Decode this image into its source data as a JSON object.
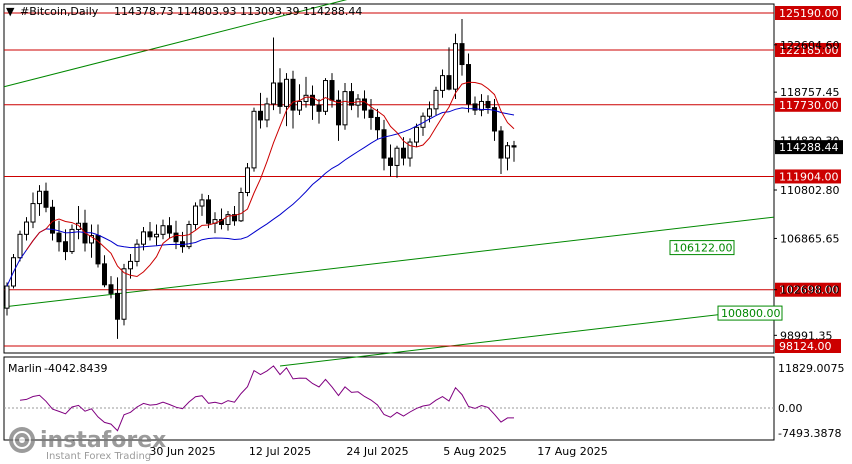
{
  "header": {
    "symbol": "#Bitcoin,Daily",
    "ohlc": "114378.73 114803.93 113093.39 114288.44"
  },
  "indicator": {
    "name": "Marlin",
    "value": "-4042.8439",
    "scale_labels": [
      "11829.0075",
      "0.00",
      "-7493.3878"
    ]
  },
  "watermark": {
    "brand": "instaforex",
    "tagline": "Instant Forex Trading"
  },
  "colors": {
    "up_candle": "#ffffff",
    "down_candle": "#000000",
    "resistance": "#cc0000",
    "ma_fast": "#cc0000",
    "ma_slow": "#0000cc",
    "channel": "#008800",
    "oscillator": "#800080",
    "current_price_bg": "#000000"
  },
  "chart_data": {
    "type": "candlestick",
    "y_ticks": [
      "122604.60",
      "118757.45",
      "114830.30",
      "110802.80",
      "106865.65",
      "102698.00",
      "98991.35"
    ],
    "x_ticks": [
      "30 Jun 2025",
      "12 Jul 2025",
      "24 Jul 2025",
      "5 Aug 2025",
      "17 Aug 2025"
    ],
    "horizontal_levels": [
      {
        "value": 125190.0,
        "label": "125190.00"
      },
      {
        "value": 122185.0,
        "label": "122185.00"
      },
      {
        "value": 117730.0,
        "label": "117730.00"
      },
      {
        "value": 111904.0,
        "label": "111904.00"
      },
      {
        "value": 102698.0,
        "label": "102698.00"
      },
      {
        "value": 98124.0,
        "label": "98124.00"
      }
    ],
    "channel_labels": [
      {
        "value": 106122.0,
        "label": "106122.00"
      },
      {
        "value": 100800.0,
        "label": "100800.00"
      }
    ],
    "current_price": {
      "value": 114288.44,
      "label": "114288.44"
    },
    "candles": [
      [
        101200,
        103300,
        100600,
        103000
      ],
      [
        103000,
        105600,
        102800,
        105300
      ],
      [
        105300,
        107500,
        105000,
        107200
      ],
      [
        107200,
        108600,
        106700,
        108200
      ],
      [
        108200,
        110600,
        107700,
        109700
      ],
      [
        109700,
        111200,
        108700,
        110700
      ],
      [
        110700,
        111400,
        109000,
        109400
      ],
      [
        109400,
        110000,
        106700,
        107300
      ],
      [
        107300,
        108300,
        105800,
        106600
      ],
      [
        106600,
        107600,
        105100,
        105800
      ],
      [
        105800,
        108000,
        105600,
        107600
      ],
      [
        107600,
        109500,
        106800,
        108100
      ],
      [
        108100,
        109200,
        105800,
        106500
      ],
      [
        106500,
        108000,
        105300,
        107100
      ],
      [
        107100,
        108000,
        104500,
        104800
      ],
      [
        104800,
        105500,
        102900,
        103100
      ],
      [
        103100,
        103800,
        102000,
        102400
      ],
      [
        102400,
        103700,
        98700,
        100300
      ],
      [
        100300,
        104800,
        99800,
        104400
      ],
      [
        104400,
        105600,
        103600,
        105000
      ],
      [
        105000,
        106800,
        104600,
        106400
      ],
      [
        106400,
        107800,
        105900,
        107400
      ],
      [
        107400,
        108200,
        106700,
        107000
      ],
      [
        107000,
        108000,
        106300,
        107200
      ],
      [
        107200,
        108400,
        106800,
        107900
      ],
      [
        107900,
        108600,
        106900,
        107300
      ],
      [
        107300,
        108300,
        106000,
        106600
      ],
      [
        106600,
        107400,
        105700,
        106200
      ],
      [
        106200,
        108300,
        106000,
        108000
      ],
      [
        108000,
        109800,
        107600,
        109500
      ],
      [
        109500,
        110500,
        108700,
        110000
      ],
      [
        110000,
        110400,
        107700,
        108100
      ],
      [
        108100,
        109000,
        107300,
        108400
      ],
      [
        108400,
        109300,
        107600,
        108000
      ],
      [
        108000,
        109100,
        107500,
        108800
      ],
      [
        108800,
        109500,
        107900,
        108300
      ],
      [
        108300,
        111000,
        108200,
        110600
      ],
      [
        110600,
        113000,
        110300,
        112600
      ],
      [
        112600,
        117500,
        112300,
        117200
      ],
      [
        117200,
        118700,
        115800,
        116500
      ],
      [
        116500,
        118300,
        115900,
        117800
      ],
      [
        117800,
        123200,
        117300,
        119500
      ],
      [
        119500,
        120700,
        117000,
        117600
      ],
      [
        117600,
        120300,
        116000,
        119800
      ],
      [
        119800,
        120500,
        115800,
        117300
      ],
      [
        117300,
        119400,
        116900,
        118000
      ],
      [
        118000,
        120000,
        117500,
        118500
      ],
      [
        118500,
        119300,
        116500,
        117700
      ],
      [
        117700,
        118200,
        116200,
        117200
      ],
      [
        117200,
        119900,
        116900,
        119700
      ],
      [
        119700,
        120300,
        117500,
        118100
      ],
      [
        118100,
        118900,
        114800,
        116100
      ],
      [
        116100,
        119500,
        115700,
        118800
      ],
      [
        118800,
        119500,
        117300,
        117700
      ],
      [
        117700,
        118600,
        116700,
        118200
      ],
      [
        118200,
        118900,
        116600,
        117300
      ],
      [
        117300,
        118200,
        115700,
        116700
      ],
      [
        116700,
        117400,
        114900,
        115700
      ],
      [
        115700,
        116500,
        112400,
        113400
      ],
      [
        113400,
        114500,
        111900,
        112800
      ],
      [
        112800,
        114400,
        111800,
        114200
      ],
      [
        114200,
        115100,
        112800,
        113400
      ],
      [
        113400,
        115000,
        112700,
        114700
      ],
      [
        114700,
        116200,
        114300,
        115900
      ],
      [
        115900,
        117100,
        115200,
        116800
      ],
      [
        116800,
        118000,
        116300,
        117400
      ],
      [
        117400,
        119200,
        116900,
        118900
      ],
      [
        118900,
        120600,
        118300,
        120100
      ],
      [
        120100,
        122400,
        118900,
        119000
      ],
      [
        119000,
        123500,
        118200,
        122700
      ],
      [
        122700,
        124700,
        120100,
        121000
      ],
      [
        121000,
        121900,
        117100,
        117800
      ],
      [
        117800,
        118400,
        116900,
        117300
      ],
      [
        117300,
        118600,
        116800,
        118000
      ],
      [
        118000,
        118500,
        117000,
        117500
      ],
      [
        117500,
        118200,
        114800,
        115600
      ],
      [
        115600,
        116000,
        112100,
        113400
      ],
      [
        113400,
        114700,
        112400,
        114400
      ],
      [
        114400,
        114800,
        113100,
        114300
      ]
    ]
  }
}
